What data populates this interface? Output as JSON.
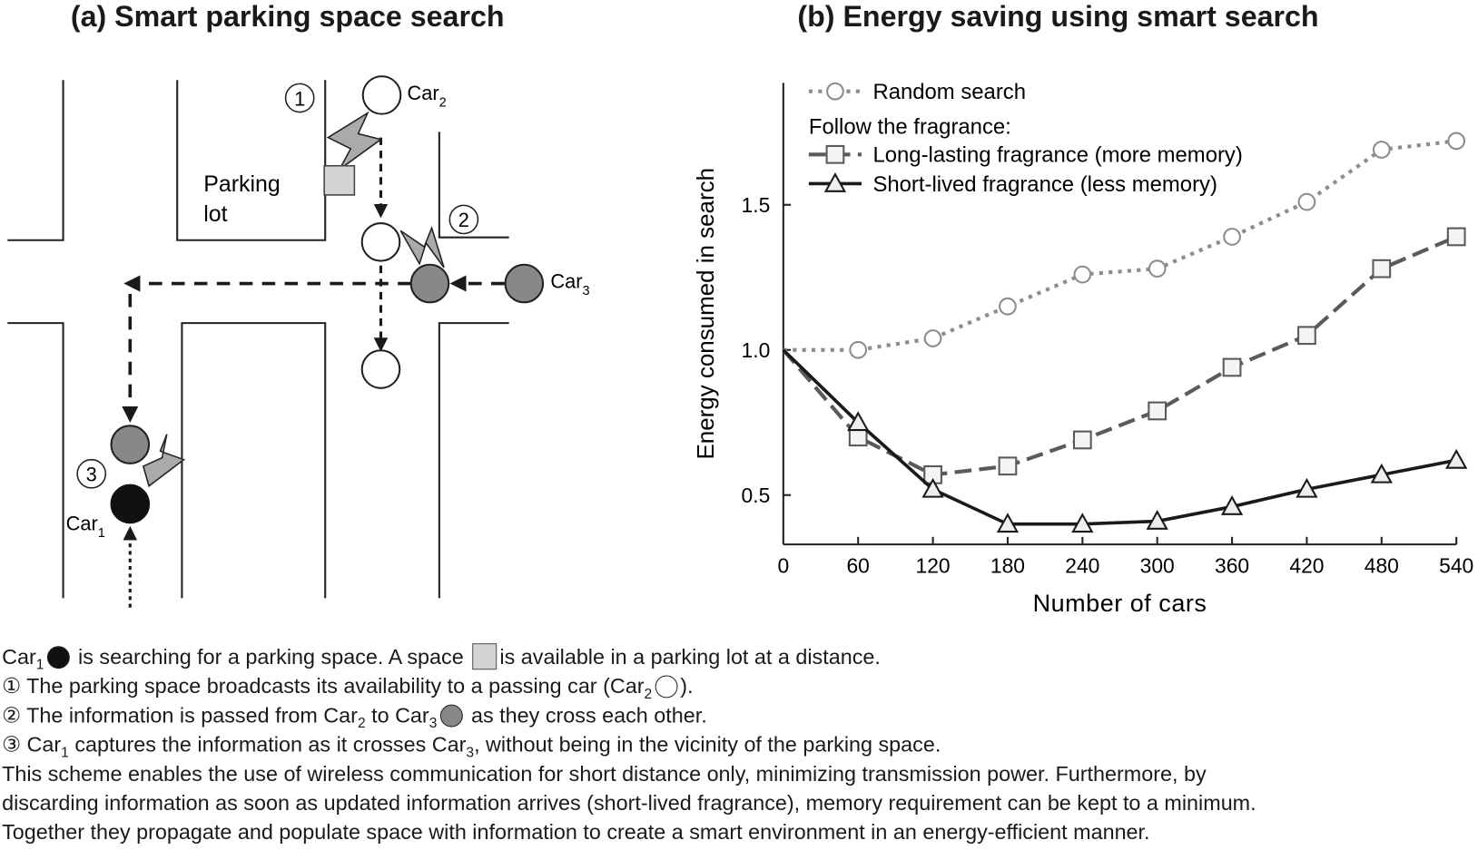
{
  "panel_a": {
    "title": "(a) Smart parking space search",
    "labels": {
      "parking_lot_1": "Parking",
      "parking_lot_2": "lot",
      "car": "Car",
      "car1_sub": "1",
      "car2_sub": "2",
      "car3_sub": "3",
      "step1": "1",
      "step2": "2",
      "step3": "3"
    }
  },
  "panel_b": {
    "title": "(b) Energy saving using smart search",
    "legend_group_label": "Follow the fragrance:"
  },
  "colors": {
    "random": "#8c8c8c",
    "long": "#5a5a5a",
    "short": "#1a1a1a",
    "space": "#d4d4d4",
    "car3": "#888888",
    "car1": "#111111"
  },
  "chart_data": {
    "type": "line",
    "xlabel": "Number of cars",
    "ylabel": "Energy consumed in search",
    "x": [
      0,
      60,
      120,
      180,
      240,
      300,
      360,
      420,
      480,
      540
    ],
    "xticks": [
      "0",
      "60",
      "120",
      "180",
      "240",
      "300",
      "360",
      "420",
      "480",
      "540"
    ],
    "yticks": [
      "0.5",
      "1.0",
      "1.5"
    ],
    "xlim": [
      0,
      540
    ],
    "ylim": [
      0.33,
      1.92
    ],
    "grid": false,
    "legend_position": "top-left",
    "series": [
      {
        "name": "Random search",
        "marker": "circle",
        "style": "dotted",
        "values": [
          1.0,
          1.0,
          1.04,
          1.15,
          1.26,
          1.28,
          1.39,
          1.51,
          1.69,
          1.72
        ]
      },
      {
        "name": "Long-lasting fragrance (more memory)",
        "marker": "square",
        "style": "dashed",
        "values": [
          1.0,
          0.7,
          0.57,
          0.6,
          0.69,
          0.79,
          0.94,
          1.05,
          1.28,
          1.39
        ]
      },
      {
        "name": "Short-lived fragrance (less memory)",
        "marker": "triangle",
        "style": "solid",
        "values": [
          1.0,
          0.75,
          0.52,
          0.4,
          0.4,
          0.41,
          0.46,
          0.52,
          0.57,
          0.62
        ]
      }
    ]
  },
  "caption": {
    "l1a": "Car",
    "l1sub": "1",
    "l1b": " is searching for a parking space. A space ",
    "l1c": "is available in a parking lot at a distance.",
    "l2a": "① The parking space broadcasts its availability to a passing car (Car",
    "l2sub": "2",
    "l2b": ").",
    "l3a": "② The information is passed from Car",
    "l3sub1": "2",
    "l3b": " to Car",
    "l3sub2": "3",
    "l3c": " as they cross each other.",
    "l4a": "③ Car",
    "l4sub1": "1",
    "l4b": " captures the information as it crosses Car",
    "l4sub2": "3",
    "l4c": ", without being in the vicinity of the parking space.",
    "l5": "This scheme enables the use of wireless communication for short distance only, minimizing transmission power. Furthermore, by",
    "l6": "discarding information as soon as updated information arrives (short-lived fragrance), memory requirement can be kept to a minimum.",
    "l7": "Together they propagate and populate space with information to create a smart environment in an energy-efficient manner."
  }
}
